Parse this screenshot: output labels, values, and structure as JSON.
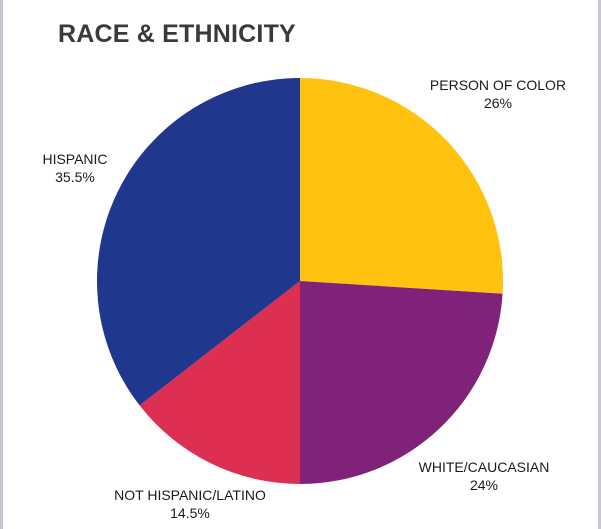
{
  "chart_data": {
    "type": "pie",
    "title": "RACE & ETHNICITY",
    "slices": [
      {
        "label": "PERSON OF COLOR",
        "value_label": "26%",
        "value": 26,
        "color": "#FFC20E"
      },
      {
        "label": "WHITE/CAUCASIAN",
        "value_label": "24%",
        "value": 24,
        "color": "#80217A"
      },
      {
        "label": "NOT HISPANIC/LATINO",
        "value_label": "14.5%",
        "value": 14.5,
        "color": "#DC2F51"
      },
      {
        "label": "HISPANIC",
        "value_label": "35.5%",
        "value": 35.5,
        "color": "#1F378C"
      }
    ]
  }
}
